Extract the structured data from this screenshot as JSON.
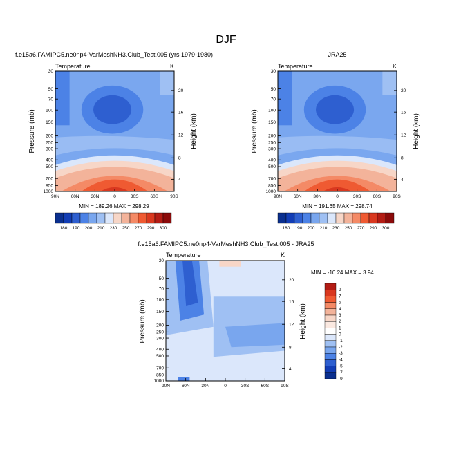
{
  "figure": {
    "title": "DJF"
  },
  "palette": {
    "cold": "#0a2f8f",
    "mid_blue": "#4c82e6",
    "light": "#dbe7fb",
    "warm": "#f3b39a",
    "hot": "#d9381f",
    "darkred": "#8b0a0a"
  },
  "chart_data": [
    {
      "type": "heatmap",
      "panel_title": "f.e15a6.FAMIPC5.ne0np4-VarMeshNH3.Club_Test.005 (yrs 1979-1980)",
      "left_label": "Temperature",
      "right_label": "K",
      "ylabel": "Pressure (mb)",
      "ylabel_right": "Height (km)",
      "x_ticks": [
        "90N",
        "60N",
        "30N",
        "0",
        "30S",
        "60S",
        "90S"
      ],
      "y_ticks": [
        "30",
        "50",
        "70",
        "100",
        "150",
        "200",
        "250",
        "300",
        "400",
        "500",
        "700",
        "850",
        "1000"
      ],
      "height_ticks": [
        "20",
        "16",
        "12",
        "8",
        "4"
      ],
      "min_max": "MIN = 189.26  MAX = 298.29",
      "colorbar_labels": [
        "180",
        "190",
        "200",
        "210",
        "230",
        "250",
        "270",
        "290",
        "300"
      ]
    },
    {
      "type": "heatmap",
      "panel_title": "JRA25",
      "left_label": "Temperature",
      "right_label": "K",
      "ylabel": "Pressure (mb)",
      "ylabel_right": "Height (km)",
      "x_ticks": [
        "90N",
        "60N",
        "30N",
        "0",
        "30S",
        "60S",
        "90S"
      ],
      "y_ticks": [
        "30",
        "50",
        "70",
        "100",
        "150",
        "200",
        "250",
        "300",
        "400",
        "500",
        "700",
        "850",
        "1000"
      ],
      "height_ticks": [
        "20",
        "16",
        "12",
        "8",
        "4"
      ],
      "min_max": "MIN = 191.65  MAX = 298.74",
      "colorbar_labels": [
        "180",
        "190",
        "200",
        "210",
        "230",
        "250",
        "270",
        "290",
        "300"
      ]
    },
    {
      "type": "heatmap",
      "panel_title": "f.e15a6.FAMIPC5.ne0np4-VarMeshNH3.Club_Test.005 - JRA25",
      "left_label": "Temperature",
      "right_label": "K",
      "ylabel": "Pressure (mb)",
      "ylabel_right": "Height (km)",
      "x_ticks": [
        "90N",
        "60N",
        "30N",
        "0",
        "30S",
        "60S",
        "90S"
      ],
      "y_ticks": [
        "30",
        "50",
        "70",
        "100",
        "150",
        "200",
        "250",
        "300",
        "400",
        "500",
        "700",
        "850",
        "1000"
      ],
      "height_ticks": [
        "20",
        "16",
        "12",
        "8",
        "4"
      ],
      "min_max": "MIN = -10.24  MAX =  3.94",
      "colorbar_labels": [
        "9",
        "7",
        "5",
        "4",
        "3",
        "2",
        "1",
        "0",
        "-1",
        "-2",
        "-3",
        "-4",
        "-5",
        "-7",
        "-9"
      ]
    }
  ]
}
